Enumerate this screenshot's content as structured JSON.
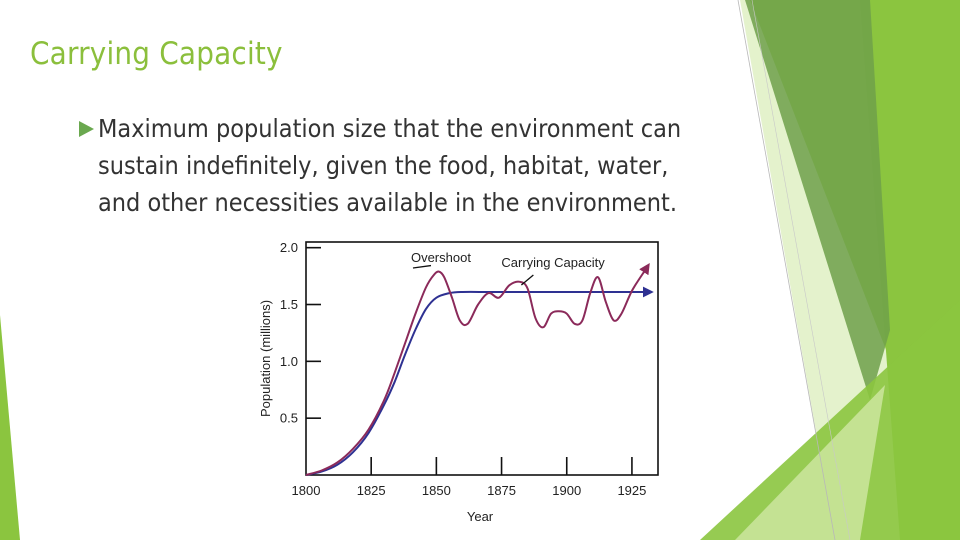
{
  "slide": {
    "title": "Carrying Capacity",
    "bullet_lines": [
      "Maximum population size that the environment can",
      "sustain indefinitely, given the food, habitat, water,",
      "and other necessities available in the environment."
    ],
    "accent_color": "#8bbf3c",
    "bullet_icon": "right-triangle-icon"
  },
  "chart_data": {
    "type": "line",
    "xlabel": "Year",
    "ylabel": "Population (millions)",
    "xlim": [
      1800,
      1935
    ],
    "ylim": [
      0,
      2.05
    ],
    "x_ticks": [
      1800,
      1825,
      1850,
      1875,
      1900,
      1925
    ],
    "y_ticks": [
      0.5,
      1.0,
      1.5,
      2.0
    ],
    "y_tick_labels": [
      "0.5",
      "1.0",
      "1.5",
      "2.0"
    ],
    "annotations": [
      {
        "text": "Overshoot",
        "x": 1851,
        "y": 1.79
      },
      {
        "text": "Carrying Capacity",
        "x": 1878,
        "y": 1.61
      }
    ],
    "series": [
      {
        "color": "#2e3192",
        "x": [
          1800,
          1806,
          1812,
          1818,
          1824,
          1830,
          1834,
          1838,
          1842,
          1846,
          1850,
          1855,
          1860,
          1870,
          1880,
          1900,
          1920,
          1930
        ],
        "y": [
          0.0,
          0.03,
          0.09,
          0.2,
          0.37,
          0.62,
          0.82,
          1.06,
          1.28,
          1.46,
          1.56,
          1.6,
          1.61,
          1.61,
          1.61,
          1.61,
          1.61,
          1.61
        ]
      },
      {
        "color": "#8b2a5a",
        "x": [
          1800,
          1806,
          1812,
          1818,
          1824,
          1830,
          1834,
          1838,
          1842,
          1846,
          1849,
          1851,
          1853,
          1856,
          1859,
          1862,
          1866,
          1870,
          1874,
          1878,
          1882,
          1885,
          1888,
          1891,
          1894,
          1897,
          1900,
          1903,
          1906,
          1909,
          1912,
          1915,
          1918,
          1921,
          1925,
          1930
        ],
        "y": [
          0.0,
          0.04,
          0.11,
          0.23,
          0.4,
          0.66,
          0.9,
          1.16,
          1.42,
          1.65,
          1.76,
          1.79,
          1.74,
          1.56,
          1.36,
          1.33,
          1.5,
          1.6,
          1.56,
          1.67,
          1.7,
          1.64,
          1.38,
          1.3,
          1.42,
          1.44,
          1.42,
          1.33,
          1.36,
          1.6,
          1.74,
          1.52,
          1.36,
          1.42,
          1.62,
          1.8
        ]
      }
    ]
  }
}
